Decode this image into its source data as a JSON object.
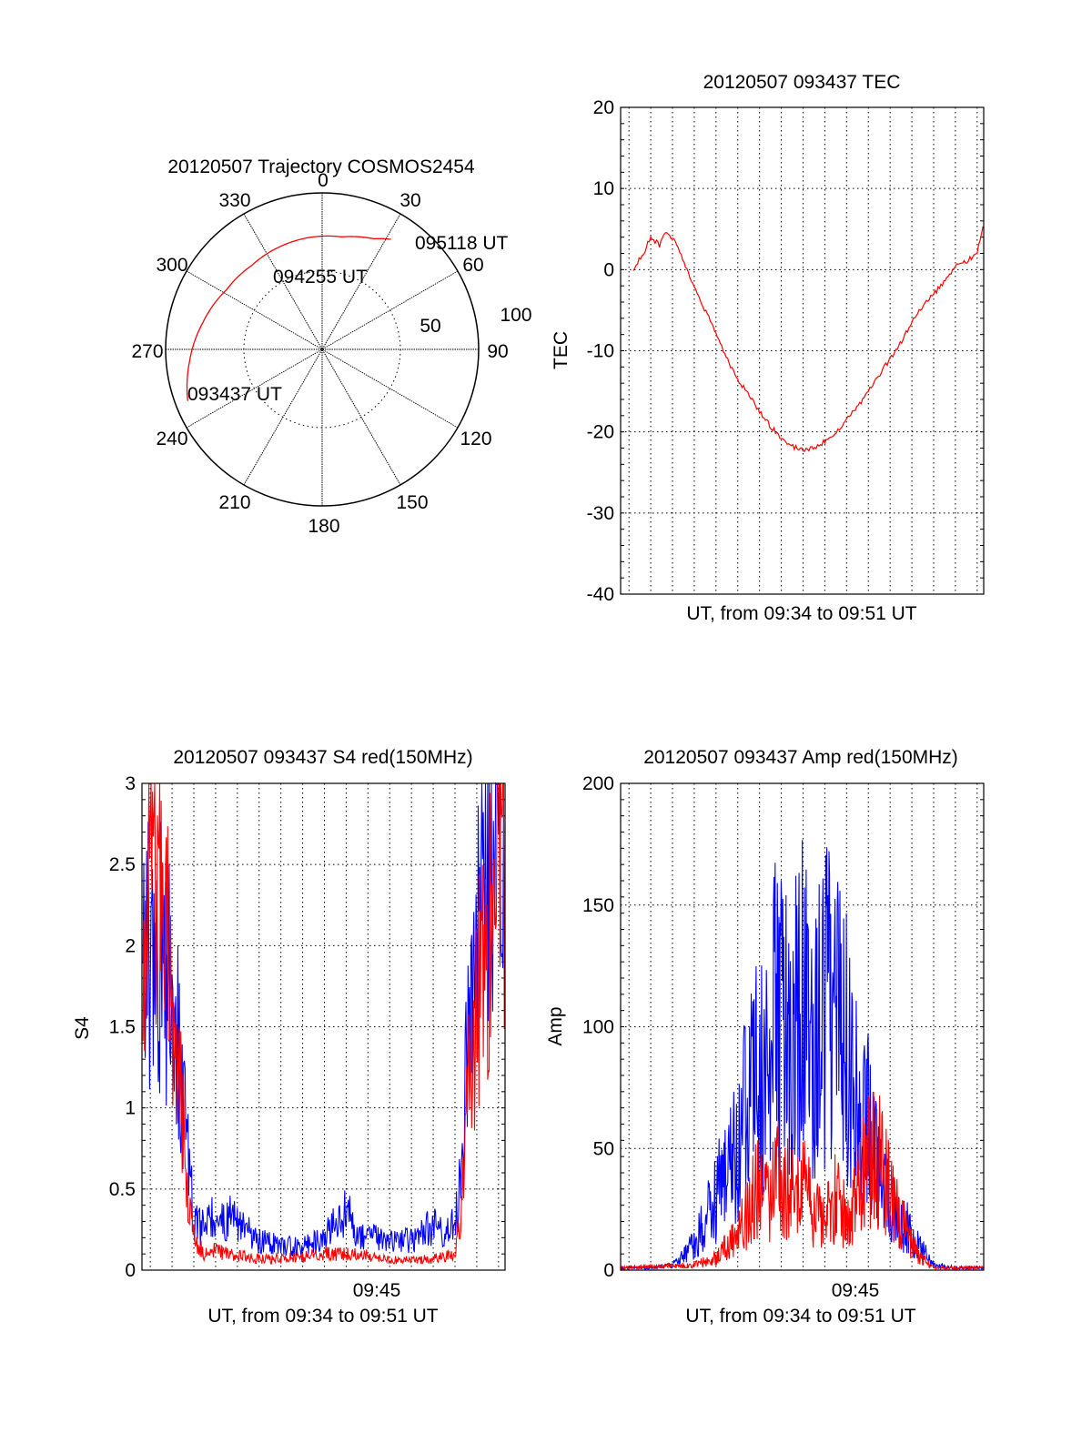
{
  "colors": {
    "red": "#ff0000",
    "blue": "#0000ff",
    "axis": "#000000",
    "background": "#ffffff"
  },
  "chart_data": [
    {
      "id": "trajectory",
      "type": "polar",
      "title": "20120507 Trajectory COSMOS2454",
      "azimuth_labels": [
        "0",
        "30",
        "60",
        "90",
        "120",
        "150",
        "180",
        "210",
        "240",
        "270",
        "300",
        "330"
      ],
      "ring_labels": [
        "50",
        "100"
      ],
      "rlim": [
        0,
        100
      ],
      "direction": "clockwise, 0 at top",
      "grid": true,
      "track": {
        "color": "#ff0000",
        "points": [
          {
            "az": 249,
            "r": 92
          },
          {
            "az": 265,
            "r": 85
          },
          {
            "az": 283,
            "r": 78
          },
          {
            "az": 302,
            "r": 72
          },
          {
            "az": 320,
            "r": 70
          },
          {
            "az": 338,
            "r": 71
          },
          {
            "az": 354,
            "r": 72
          },
          {
            "az": 10,
            "r": 73
          },
          {
            "az": 25,
            "r": 78
          },
          {
            "az": 32,
            "r": 83
          }
        ]
      },
      "annotations": [
        {
          "text": "093437 UT",
          "az": 249,
          "r": 92
        },
        {
          "text": "094255 UT",
          "az": 330,
          "r": 68
        },
        {
          "text": "095118 UT",
          "az": 32,
          "r": 83
        }
      ]
    },
    {
      "id": "tec",
      "type": "line",
      "title": "20120507 093437 TEC",
      "xlabel": "UT, from 09:34 to 09:51 UT",
      "ylabel": "TEC",
      "xlim": [
        "09:34:37",
        "09:51:18"
      ],
      "ylim": [
        -40,
        20
      ],
      "yticks": [
        20,
        10,
        0,
        -10,
        -20,
        -30,
        -40
      ],
      "grid": true,
      "series": [
        {
          "color": "#ff0000",
          "x": [
            "09:35:12",
            "09:35:40",
            "09:36:00",
            "09:36:24",
            "09:36:40",
            "09:37:00",
            "09:37:30",
            "09:38:00",
            "09:38:30",
            "09:39:00",
            "09:39:30",
            "09:40:00",
            "09:40:30",
            "09:41:00",
            "09:41:30",
            "09:42:00",
            "09:42:30",
            "09:43:00",
            "09:43:30",
            "09:44:00",
            "09:44:30",
            "09:45:00",
            "09:45:30",
            "09:46:00",
            "09:46:30",
            "09:47:00",
            "09:47:30",
            "09:48:00",
            "09:48:30",
            "09:49:00",
            "09:49:30",
            "09:50:00",
            "09:50:30",
            "09:51:00",
            "09:51:18"
          ],
          "values": [
            0,
            2,
            4,
            3,
            4.5,
            4,
            1,
            -2,
            -5,
            -8,
            -11,
            -13.5,
            -15.5,
            -17.5,
            -19.3,
            -20.7,
            -21.8,
            -22.2,
            -22,
            -21.2,
            -20,
            -18.5,
            -17,
            -15,
            -13,
            -11,
            -9,
            -6.5,
            -4.5,
            -3,
            -1.5,
            0.5,
            1,
            2,
            6
          ]
        }
      ]
    },
    {
      "id": "s4",
      "type": "line",
      "title": "20120507 093437 S4 red(150MHz)",
      "xlabel": "UT, from 09:34 to 09:51 UT",
      "ylabel": "S4",
      "xlim": [
        "09:34:37",
        "09:51:18"
      ],
      "ylim": [
        0,
        3
      ],
      "yticks": [
        "3",
        "2.5",
        "2",
        "1.5",
        "1",
        "0.5",
        "0"
      ],
      "xtick_label": "09:45",
      "grid": true,
      "series": [
        {
          "color": "#0000ff",
          "x": [
            "09:34:40",
            "09:35:00",
            "09:35:30",
            "09:36:00",
            "09:36:20",
            "09:36:40",
            "09:37:00",
            "09:37:30",
            "09:38:00",
            "09:39:00",
            "09:40:00",
            "09:41:00",
            "09:42:00",
            "09:43:00",
            "09:43:30",
            "09:44:00",
            "09:44:30",
            "09:45:00",
            "09:46:00",
            "09:47:00",
            "09:48:00",
            "09:48:30",
            "09:49:00",
            "09:49:20",
            "09:49:40",
            "09:50:00",
            "09:50:30",
            "09:51:00",
            "09:51:18"
          ],
          "values": [
            1.8,
            2.0,
            1.9,
            1.7,
            1.3,
            0.9,
            0.3,
            0.25,
            0.35,
            0.3,
            0.18,
            0.15,
            0.14,
            0.2,
            0.3,
            0.35,
            0.25,
            0.2,
            0.18,
            0.18,
            0.28,
            0.22,
            0.3,
            0.6,
            1.8,
            2.3,
            2.5,
            2.7,
            2.8
          ]
        },
        {
          "color": "#ff0000",
          "x": [
            "09:34:40",
            "09:35:00",
            "09:35:30",
            "09:36:00",
            "09:36:20",
            "09:36:40",
            "09:37:00",
            "09:37:30",
            "09:38:00",
            "09:39:00",
            "09:40:00",
            "09:41:00",
            "09:42:00",
            "09:43:00",
            "09:44:00",
            "09:45:00",
            "09:46:00",
            "09:47:00",
            "09:48:00",
            "09:48:30",
            "09:49:00",
            "09:49:20",
            "09:49:40",
            "09:50:00",
            "09:50:30",
            "09:51:00",
            "09:51:18"
          ],
          "values": [
            1.6,
            2.4,
            2.2,
            1.8,
            1.2,
            0.6,
            0.2,
            0.1,
            0.12,
            0.09,
            0.07,
            0.07,
            0.08,
            0.1,
            0.1,
            0.09,
            0.06,
            0.06,
            0.07,
            0.08,
            0.1,
            0.4,
            1.2,
            1.6,
            2.0,
            2.4,
            2.6
          ]
        }
      ]
    },
    {
      "id": "amp",
      "type": "line",
      "title": "20120507 093437 Amp red(150MHz)",
      "xlabel": "UT, from 09:34 to 09:51 UT",
      "ylabel": "Amp",
      "xlim": [
        "09:34:37",
        "09:51:18"
      ],
      "ylim": [
        0,
        200
      ],
      "yticks": [
        200,
        150,
        100,
        50,
        0
      ],
      "xtick_label": "09:45",
      "grid": true,
      "series": [
        {
          "color": "#0000ff",
          "x": [
            "09:34:37",
            "09:36:00",
            "09:37:00",
            "09:38:00",
            "09:39:00",
            "09:40:00",
            "09:40:30",
            "09:41:00",
            "09:41:30",
            "09:42:00",
            "09:42:30",
            "09:43:00",
            "09:43:30",
            "09:44:00",
            "09:44:30",
            "09:45:00",
            "09:45:30",
            "09:46:00",
            "09:46:30",
            "09:47:00",
            "09:47:30",
            "09:48:00",
            "09:48:30",
            "09:49:00",
            "09:50:00",
            "09:51:18"
          ],
          "values": [
            1,
            1,
            2,
            10,
            30,
            50,
            70,
            85,
            95,
            110,
            90,
            115,
            85,
            110,
            100,
            90,
            70,
            60,
            40,
            25,
            20,
            15,
            8,
            2,
            1,
            1
          ]
        },
        {
          "color": "#ff0000",
          "x": [
            "09:34:37",
            "09:38:00",
            "09:39:00",
            "09:40:00",
            "09:40:30",
            "09:41:00",
            "09:41:30",
            "09:42:00",
            "09:42:30",
            "09:43:00",
            "09:43:30",
            "09:44:00",
            "09:44:30",
            "09:45:00",
            "09:45:30",
            "09:46:00",
            "09:46:30",
            "09:47:00",
            "09:47:30",
            "09:48:00",
            "09:48:30",
            "09:49:00",
            "09:51:18"
          ],
          "values": [
            1,
            2,
            5,
            15,
            25,
            35,
            30,
            40,
            30,
            35,
            25,
            20,
            30,
            20,
            35,
            45,
            45,
            30,
            20,
            10,
            5,
            1,
            1
          ]
        }
      ]
    }
  ]
}
